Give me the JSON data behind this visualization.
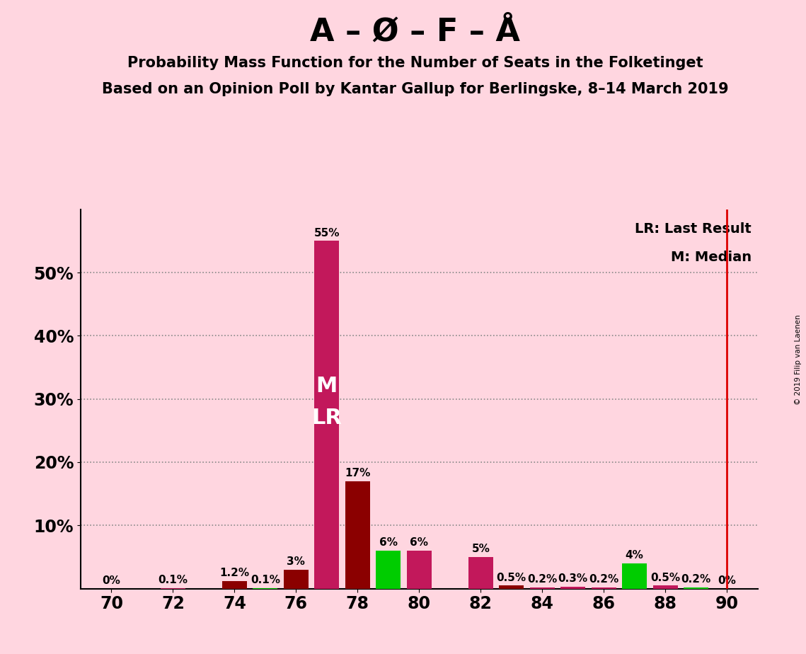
{
  "title_main": "A – Ø – F – Å",
  "subtitle1": "Probability Mass Function for the Number of Seats in the Folketinget",
  "subtitle2": "Based on an Opinion Poll by Kantar Gallup for Berlingske, 8–14 March 2019",
  "copyright": "© 2019 Filip van Laenen",
  "background_color": "#ffd6e0",
  "x_positions": [
    70,
    71,
    72,
    73,
    74,
    75,
    76,
    77,
    78,
    79,
    80,
    81,
    82,
    83,
    84,
    85,
    86,
    87,
    88,
    89,
    90
  ],
  "bar_values": [
    0.0,
    0.0,
    0.1,
    0.0,
    1.2,
    0.1,
    3.0,
    55.0,
    17.0,
    6.0,
    6.0,
    0.0,
    5.0,
    0.5,
    0.2,
    0.3,
    0.2,
    4.0,
    0.5,
    0.2,
    0.0
  ],
  "bar_colors": [
    "#c2185b",
    "#c2185b",
    "#c2185b",
    "#c2185b",
    "#8b0000",
    "#00cc00",
    "#8b0000",
    "#c2185b",
    "#8b0000",
    "#00cc00",
    "#c2185b",
    "#c2185b",
    "#c2185b",
    "#8b0000",
    "#c2185b",
    "#c2185b",
    "#c2185b",
    "#00cc00",
    "#c2185b",
    "#00cc00",
    "#c2185b"
  ],
  "bar_labels": [
    "0%",
    "",
    "0.1%",
    "",
    "1.2%",
    "0.1%",
    "3%",
    "55%",
    "17%",
    "6%",
    "6%",
    "",
    "5%",
    "0.5%",
    "0.2%",
    "0.3%",
    "0.2%",
    "4%",
    "0.5%",
    "0.2%",
    "0%"
  ],
  "vline_color": "#dd0000",
  "vline_x": 90,
  "median_x": 77,
  "lr_x": 77,
  "ytick_positions": [
    10,
    20,
    30,
    40,
    50
  ],
  "ytick_labels": [
    "10%",
    "20%",
    "30%",
    "40%",
    "50%"
  ],
  "ylim": [
    0,
    60
  ],
  "xlim": [
    69.0,
    91.0
  ],
  "bar_width": 0.8,
  "legend_lr": "LR: Last Result",
  "legend_m": "M: Median",
  "label_fontsize": 11,
  "tick_fontsize": 17,
  "title_fontsize": 32,
  "subtitle_fontsize": 15
}
